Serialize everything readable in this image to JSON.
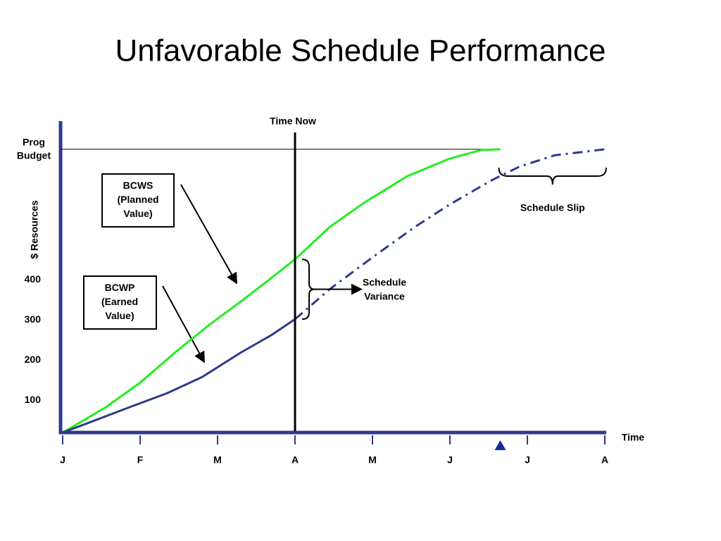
{
  "chart_data": {
    "type": "line",
    "title": "Unfavorable Schedule Performance",
    "ylabel": "$ Resources",
    "xlabel": "Time",
    "xlim": [
      0,
      7
    ],
    "xticks": [
      {
        "value": 0,
        "label": "J"
      },
      {
        "value": 1,
        "label": "F"
      },
      {
        "value": 2,
        "label": "M"
      },
      {
        "value": 3,
        "label": "A"
      },
      {
        "value": 4,
        "label": "M"
      },
      {
        "value": 5,
        "label": "J"
      },
      {
        "value": 6,
        "label": "J"
      },
      {
        "value": 7,
        "label": "A"
      }
    ],
    "ylim": [
      20,
      795
    ],
    "yticks": [
      100,
      200,
      300,
      400
    ],
    "series": [
      {
        "name": "BCWS (Planned Value)",
        "color": "#22ee22",
        "x": [
          0,
          0.55,
          1,
          1.45,
          1.9,
          2.3,
          2.65,
          3,
          3.45,
          3.9,
          4.45,
          5,
          5.4,
          5.65
        ],
        "values": [
          20,
          82,
          144,
          219,
          289,
          346,
          398,
          451,
          532,
          593,
          658,
          702,
          723,
          725
        ]
      },
      {
        "name": "BCWP (Earned Value)",
        "color": "#2e3a8c",
        "x": [
          0,
          0.4,
          0.85,
          1.35,
          1.8,
          2.3,
          2.7,
          3
        ],
        "values": [
          20,
          49,
          82,
          118,
          158,
          219,
          263,
          302
        ],
        "forecast": {
          "x": [
            3,
            3.45,
            4,
            4.55,
            5,
            5.55,
            5.9,
            6.35,
            7
          ],
          "values": [
            302,
            377,
            456,
            532,
            588,
            649,
            682,
            710,
            725
          ]
        }
      }
    ],
    "time_now": {
      "label": "Time Now",
      "x": 3
    },
    "budget": {
      "label": "Prog Budget",
      "value": 725
    },
    "variance_label": "Schedule Variance",
    "slip_label": "Schedule Slip",
    "marker_x": 5.65
  }
}
